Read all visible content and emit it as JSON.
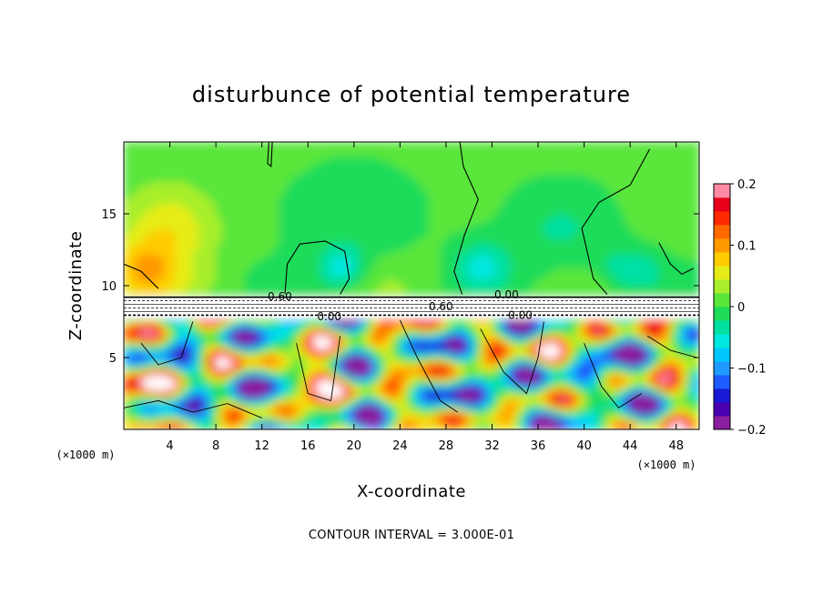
{
  "chart_data": {
    "type": "heatmap",
    "title": "disturbunce of potential temperature",
    "xlabel": "X-coordinate",
    "ylabel": "Z-coordinate",
    "x_unit_label_left": "(×1000 m)",
    "x_unit_label_right": "(×1000 m)",
    "xlim": [
      0,
      50
    ],
    "ylim": [
      0,
      20
    ],
    "x_ticks": [
      4,
      8,
      12,
      16,
      20,
      24,
      28,
      32,
      36,
      40,
      44,
      48
    ],
    "x_tick_labels": [
      "4",
      "8",
      "12",
      "16",
      "20",
      "24",
      "28",
      "32",
      "36",
      "40",
      "44",
      "48"
    ],
    "y_ticks": [
      5,
      10,
      15
    ],
    "y_tick_labels": [
      "5",
      "10",
      "15"
    ],
    "colorbar": {
      "min": -0.2,
      "max": 0.2,
      "ticks": [
        0.2,
        0.1,
        0,
        -0.1,
        -0.2
      ],
      "tick_labels": [
        "0.2",
        "0.1",
        "0",
        "−0.1",
        "−0.2"
      ],
      "colors": [
        "#8b1e9e",
        "#4a00b0",
        "#1a1ad6",
        "#1e5cff",
        "#1f9bff",
        "#00c8ff",
        "#00e8e0",
        "#00e0a0",
        "#1edc5a",
        "#5ae63a",
        "#a8ee2c",
        "#e6ec18",
        "#ffcc00",
        "#ff9a00",
        "#ff6a00",
        "#ff2a00",
        "#e8001a",
        "#ff8aa6"
      ]
    },
    "contour_labels": [
      {
        "text": "0.60",
        "x": 12.5,
        "y": 9.0
      },
      {
        "text": "0.00",
        "x": 16.8,
        "y": 7.6
      },
      {
        "text": "0.60",
        "x": 26.5,
        "y": 8.3
      },
      {
        "text": "0.00",
        "x": 32.2,
        "y": 9.1
      },
      {
        "text": "0.00",
        "x": 33.4,
        "y": 7.7
      }
    ],
    "contour_interval_text": "CONTOUR INTERVAL = 3.000E-01",
    "grid": false
  }
}
